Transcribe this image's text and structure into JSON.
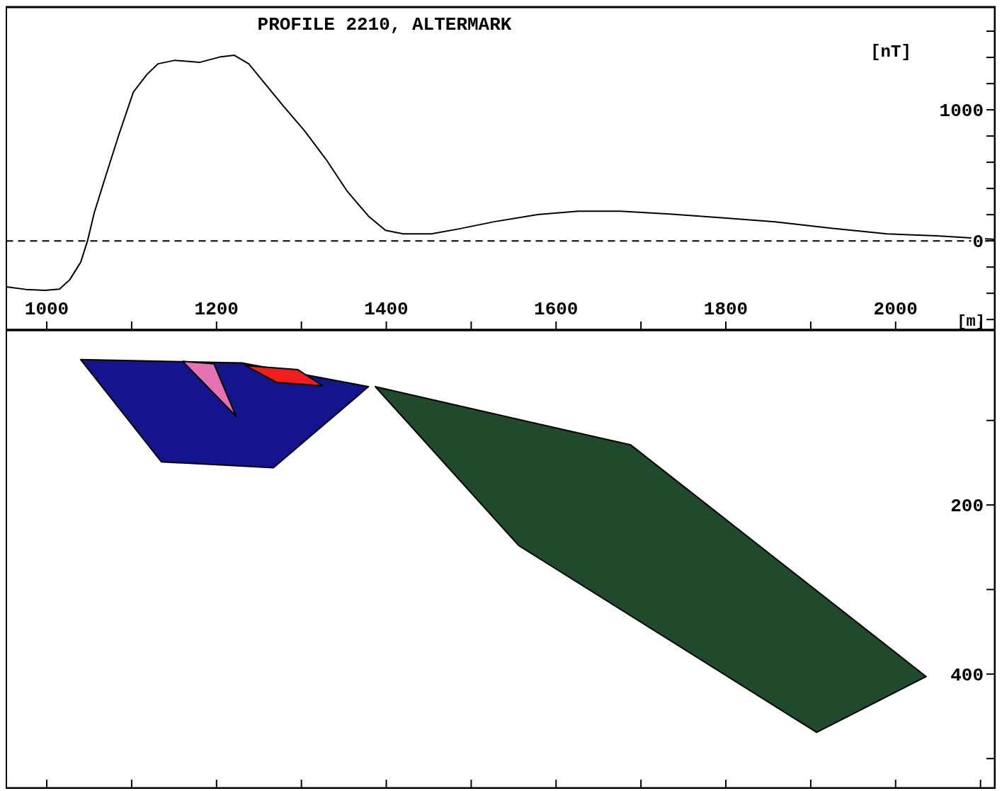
{
  "chart_data": [
    {
      "type": "line",
      "title": "PROFILE 2210, ALTERMARK",
      "xlabel": "[m]",
      "ylabel": "[nT]",
      "xlim": [
        952,
        2117
      ],
      "xticks": [
        {
          "value": 1000,
          "label": "1000"
        },
        {
          "value": 1100,
          "label": null
        },
        {
          "value": 1200,
          "label": "1200"
        },
        {
          "value": 1300,
          "label": null
        },
        {
          "value": 1400,
          "label": "1400"
        },
        {
          "value": 1500,
          "label": null
        },
        {
          "value": 1600,
          "label": "1600"
        },
        {
          "value": 1700,
          "label": null
        },
        {
          "value": 1800,
          "label": "1800"
        },
        {
          "value": 1900,
          "label": null
        },
        {
          "value": 2000,
          "label": "2000"
        },
        {
          "value": 2100,
          "label": null
        }
      ],
      "ylim": [
        -680,
        1784
      ],
      "yticks": [
        {
          "value": -600,
          "label": null
        },
        {
          "value": -400,
          "label": null
        },
        {
          "value": -200,
          "label": null
        },
        {
          "value": 0,
          "label": "0"
        },
        {
          "value": 200,
          "label": null
        },
        {
          "value": 400,
          "label": null
        },
        {
          "value": 600,
          "label": null
        },
        {
          "value": 800,
          "label": null
        },
        {
          "value": 1000,
          "label": "1000"
        },
        {
          "value": 1200,
          "label": null
        },
        {
          "value": 1400,
          "label": null
        },
        {
          "value": 1600,
          "label": null
        }
      ],
      "ref_lines": [
        {
          "axis": "y",
          "value": 0,
          "line_style": "dashed",
          "color": "#000000"
        }
      ],
      "grid": false,
      "line_style": "solid",
      "series": [
        {
          "color": "#000000",
          "x": [
            952,
            975,
            998,
            1015,
            1027,
            1040,
            1048,
            1056,
            1069,
            1085,
            1102,
            1118,
            1131,
            1151,
            1180,
            1205,
            1221,
            1238,
            1255,
            1279,
            1304,
            1329,
            1354,
            1379,
            1399,
            1420,
            1453,
            1486,
            1527,
            1577,
            1626,
            1676,
            1734,
            1792,
            1858,
            1924,
            1990,
            2048,
            2106,
            2117
          ],
          "values": [
            -350,
            -370,
            -378,
            -368,
            -297,
            -162,
            0,
            216,
            486,
            811,
            1135,
            1270,
            1351,
            1378,
            1362,
            1405,
            1416,
            1351,
            1216,
            1027,
            838,
            622,
            378,
            189,
            81,
            54,
            54,
            92,
            146,
            200,
            227,
            227,
            205,
            178,
            146,
            97,
            54,
            38,
            16,
            12
          ]
        }
      ]
    },
    {
      "type": "area",
      "xlim": [
        952,
        2117
      ],
      "tick_labels": "y",
      "xticks": [
        {
          "value": 1000,
          "label": null
        },
        {
          "value": 1100,
          "label": null
        },
        {
          "value": 1200,
          "label": null
        },
        {
          "value": 1300,
          "label": null
        },
        {
          "value": 1400,
          "label": null
        },
        {
          "value": 1500,
          "label": null
        },
        {
          "value": 1600,
          "label": null
        },
        {
          "value": 1700,
          "label": null
        },
        {
          "value": 1800,
          "label": null
        },
        {
          "value": 1900,
          "label": null
        },
        {
          "value": 2000,
          "label": null
        },
        {
          "value": 2100,
          "label": null
        }
      ],
      "ylim": [
        535,
        -7
      ],
      "yticks": [
        {
          "value": 100,
          "label": null
        },
        {
          "value": 200,
          "label": "200"
        },
        {
          "value": 300,
          "label": null
        },
        {
          "value": 400,
          "label": "400"
        },
        {
          "value": 500,
          "label": null
        }
      ],
      "grid": false,
      "series": [
        {
          "color": "#14148c",
          "x": [
            1040,
            1230,
            1379,
            1267,
            1135
          ],
          "values": [
            28,
            32,
            60,
            156,
            149
          ]
        },
        {
          "color": "#e472b4",
          "x": [
            1160,
            1197,
            1223
          ],
          "values": [
            30,
            33,
            95
          ]
        },
        {
          "color": "#f01e1e",
          "x": [
            1234,
            1296,
            1325,
            1271
          ],
          "values": [
            35,
            40,
            59,
            55
          ]
        },
        {
          "color": "#1f4a2b",
          "x": [
            1387,
            1688,
            2036,
            1907,
            1556
          ],
          "values": [
            60,
            129,
            403,
            469,
            248
          ]
        }
      ]
    }
  ]
}
